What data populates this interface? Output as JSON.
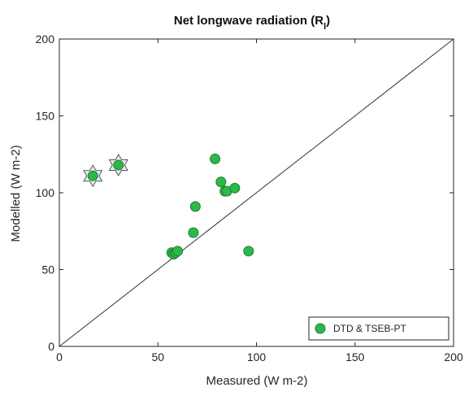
{
  "chart_data": {
    "type": "scatter",
    "title": "Net longwave radiation (R",
    "title_subscript": "l",
    "title_suffix": ")",
    "xlabel": "Measured (W m-2)",
    "ylabel": "Modelled (W m-2)",
    "xlim": [
      0,
      200
    ],
    "ylim": [
      0,
      200
    ],
    "xticks": [
      "0",
      "50",
      "100",
      "150",
      "200"
    ],
    "yticks": [
      "0",
      "50",
      "100",
      "150",
      "200"
    ],
    "grid": false,
    "reference_line": "1:1",
    "legend_position": "bottom-right",
    "series": [
      {
        "name": "DTD & TSEB-PT",
        "color": "#2db84a",
        "marker": "circle",
        "points": [
          {
            "x": 17,
            "y": 111
          },
          {
            "x": 30,
            "y": 118
          },
          {
            "x": 57,
            "y": 61
          },
          {
            "x": 58,
            "y": 60
          },
          {
            "x": 59,
            "y": 61
          },
          {
            "x": 60,
            "y": 62
          },
          {
            "x": 68,
            "y": 74
          },
          {
            "x": 69,
            "y": 91
          },
          {
            "x": 79,
            "y": 122
          },
          {
            "x": 82,
            "y": 107
          },
          {
            "x": 84,
            "y": 101
          },
          {
            "x": 85,
            "y": 101
          },
          {
            "x": 89,
            "y": 103
          },
          {
            "x": 96,
            "y": 62
          }
        ]
      }
    ],
    "highlighted_points": [
      {
        "x": 17,
        "y": 111,
        "marker": "hexagram"
      },
      {
        "x": 30,
        "y": 118,
        "marker": "hexagram"
      }
    ]
  }
}
